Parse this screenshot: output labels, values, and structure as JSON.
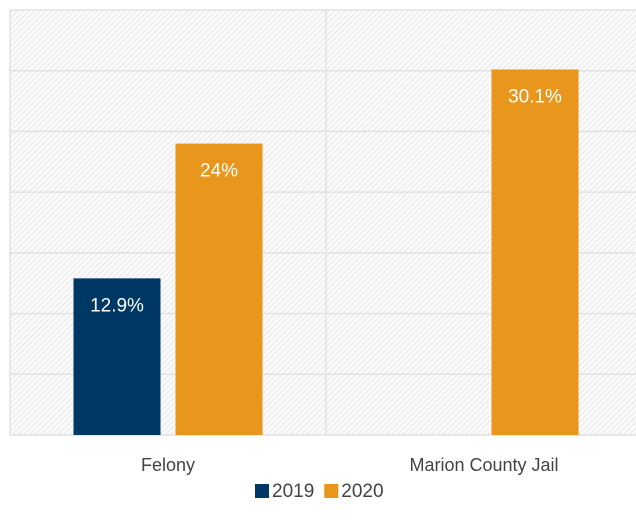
{
  "chart_data": {
    "type": "bar",
    "categories": [
      "Felony",
      "Marion County Jail"
    ],
    "series": [
      {
        "name": "2019",
        "color": "#003865",
        "values": [
          12.9,
          null
        ],
        "value_labels": [
          "12.9%",
          null
        ]
      },
      {
        "name": "2020",
        "color": "#e8961c",
        "values": [
          24,
          30.1
        ],
        "value_labels": [
          "24%",
          "30.1%"
        ]
      }
    ],
    "ylim": [
      0,
      35
    ],
    "yticks": [
      0,
      5,
      10,
      15,
      20,
      25,
      30,
      35
    ],
    "grid": true,
    "legend": "bottom"
  }
}
